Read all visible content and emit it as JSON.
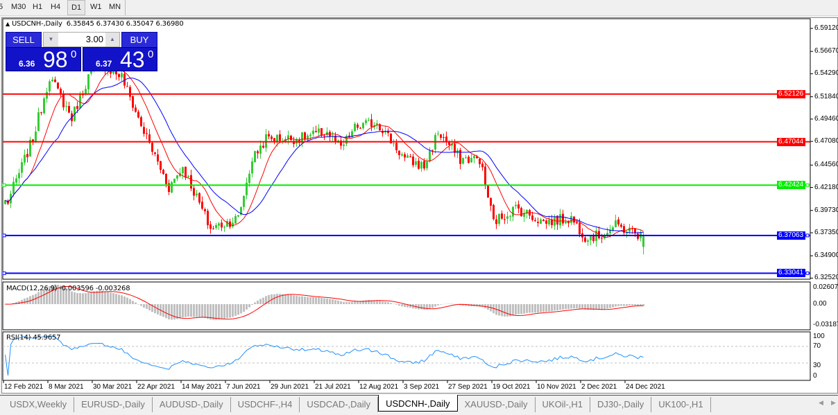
{
  "toolbar": {
    "timeframes": [
      "5",
      "M30",
      "H1",
      "H4",
      "D1",
      "W1",
      "MN"
    ],
    "active": "D1"
  },
  "chart": {
    "symbol_title": "USDCNH-,Daily",
    "ohlc": "6.35845 6.37430 6.35047 6.36980",
    "trade_panel": {
      "sell_label": "SELL",
      "buy_label": "BUY",
      "lot": "3.00",
      "sell_small": "6.36",
      "sell_big": "98",
      "sell_sup": "0",
      "buy_small": "6.37",
      "buy_big": "43",
      "buy_sup": "0"
    },
    "price_axis": [
      "6.59120",
      "6.56670",
      "6.54290",
      "6.51840",
      "6.49460",
      "6.47080",
      "6.44560",
      "6.42180",
      "6.39730",
      "6.37350",
      "6.34900",
      "6.32520"
    ],
    "levels": [
      {
        "price": "6.52126",
        "color": "#ff0000"
      },
      {
        "price": "6.47044",
        "color": "#ff0000"
      },
      {
        "price": "6.42424",
        "color": "#00ee00"
      },
      {
        "price": "6.37063",
        "color": "#0000ff"
      },
      {
        "price": "6.33041",
        "color": "#0000ff"
      }
    ],
    "colors": {
      "bull": "#33cc33",
      "bear": "#ff0000",
      "ma_fast": "#ff0000",
      "ma_slow": "#0000ff",
      "macd_hist": "#c0c0c0",
      "macd_signal": "#ff0000",
      "rsi": "#1e90ff"
    },
    "date_axis": [
      "12 Feb 2021",
      "8 Mar 2021",
      "30 Mar 2021",
      "22 Apr 2021",
      "14 May 2021",
      "7 Jun 2021",
      "29 Jun 2021",
      "21 Jul 2021",
      "12 Aug 2021",
      "3 Sep 2021",
      "27 Sep 2021",
      "19 Oct 2021",
      "10 Nov 2021",
      "2 Dec 2021",
      "24 Dec 2021"
    ],
    "macd": {
      "label": "MACD(12,26,9) -0.003596 -0.003268",
      "axis": [
        "0.02607",
        "0.00",
        "-0.03187"
      ]
    },
    "rsi": {
      "label": "RSI(14) 45.9657",
      "axis": [
        "100",
        "70",
        "30",
        "0"
      ]
    }
  },
  "chart_data": {
    "type": "candlestick",
    "symbol": "USDCNH-",
    "timeframe": "Daily",
    "ylim": [
      6.3252,
      6.6035
    ],
    "last_bar": {
      "open": 6.35845,
      "high": 6.3743,
      "low": 6.35047,
      "close": 6.3698
    },
    "close_path": [
      [
        "2021-02-15",
        6.407
      ],
      [
        "2021-02-26",
        6.474
      ],
      [
        "2021-03-08",
        6.54
      ],
      [
        "2021-03-18",
        6.496
      ],
      [
        "2021-03-29",
        6.547
      ],
      [
        "2021-04-05",
        6.551
      ],
      [
        "2021-04-13",
        6.54
      ],
      [
        "2021-04-22",
        6.488
      ],
      [
        "2021-05-06",
        6.422
      ],
      [
        "2021-05-13",
        6.444
      ],
      [
        "2021-05-27",
        6.378
      ],
      [
        "2021-06-10",
        6.389
      ],
      [
        "2021-06-17",
        6.452
      ],
      [
        "2021-06-24",
        6.474
      ],
      [
        "2021-07-12",
        6.474
      ],
      [
        "2021-07-26",
        6.481
      ],
      [
        "2021-08-02",
        6.463
      ],
      [
        "2021-08-09",
        6.485
      ],
      [
        "2021-08-19",
        6.492
      ],
      [
        "2021-09-02",
        6.452
      ],
      [
        "2021-09-13",
        6.444
      ],
      [
        "2021-09-20",
        6.481
      ],
      [
        "2021-09-30",
        6.452
      ],
      [
        "2021-10-11",
        6.452
      ],
      [
        "2021-10-18",
        6.385
      ],
      [
        "2021-10-28",
        6.4
      ],
      [
        "2021-11-11",
        6.385
      ],
      [
        "2021-11-25",
        6.389
      ],
      [
        "2021-12-02",
        6.37
      ],
      [
        "2021-12-09",
        6.37
      ],
      [
        "2021-12-17",
        6.381
      ],
      [
        "2021-12-31",
        6.3698
      ]
    ]
  },
  "tabs": [
    "USDX,Weekly",
    "EURUSD-,Daily",
    "AUDUSD-,Daily",
    "USDCHF-,H4",
    "USDCAD-,Daily",
    "USDCNH-,Daily",
    "XAUUSD-,Daily",
    "UKOil-,H1",
    "DJ30-,Daily",
    "UK100-,H1"
  ],
  "active_tab": "USDCNH-,Daily"
}
